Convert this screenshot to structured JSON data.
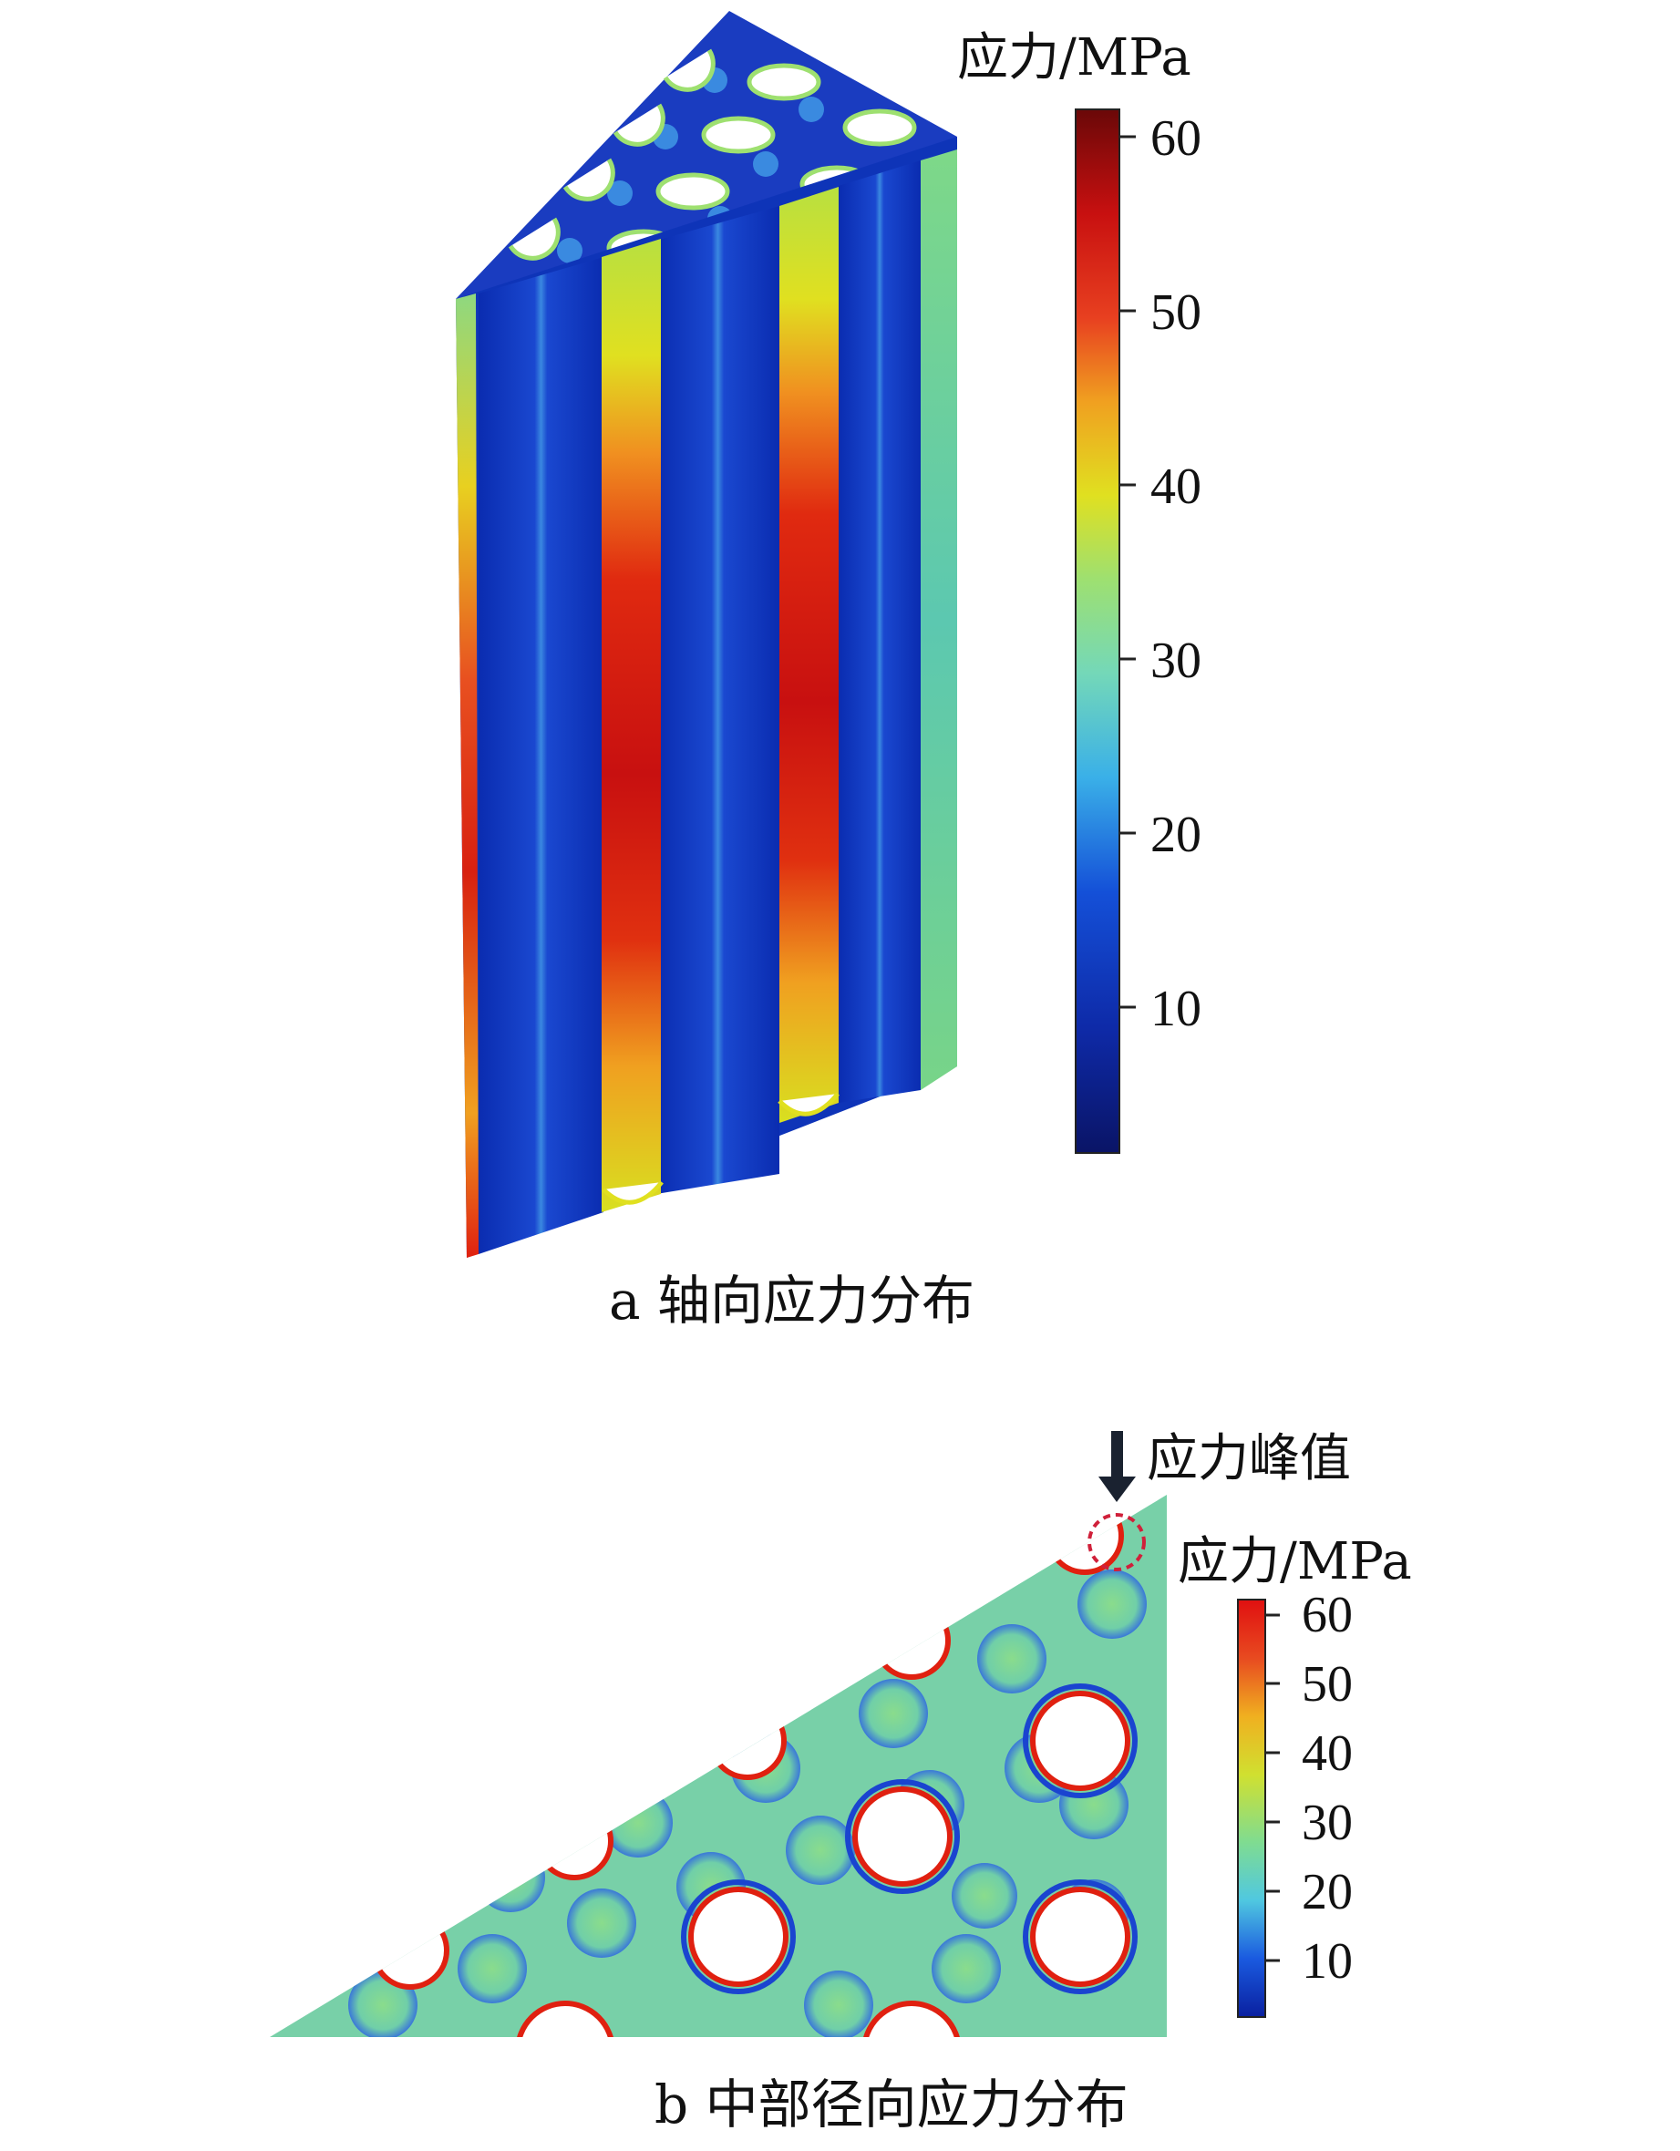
{
  "figure_a": {
    "caption": "a  轴向应力分布",
    "colorbar": {
      "unit_label": "应力/MPa",
      "ticks": [
        "60",
        "50",
        "40",
        "30",
        "20",
        "10"
      ],
      "tick_values": [
        60,
        50,
        40,
        30,
        20,
        10
      ],
      "range": [
        2,
        62
      ]
    }
  },
  "figure_b": {
    "caption": "b  中部径向应力分布",
    "annotation": "应力峰值",
    "colorbar": {
      "unit_label": "应力/MPa",
      "ticks": [
        "60",
        "50",
        "40",
        "30",
        "20",
        "10"
      ],
      "tick_values": [
        60,
        50,
        40,
        30,
        20,
        10
      ],
      "range": [
        2,
        62
      ]
    }
  },
  "colors": {
    "jet_dark_blue": "#0a1466",
    "jet_blue": "#0e3cc8",
    "jet_cyan": "#52c8e0",
    "jet_green": "#7fd88a",
    "jet_yellow": "#e8e020",
    "jet_red": "#e02010",
    "jet_dark_red": "#7a0a0a",
    "peak_marker": "#d0203a"
  }
}
